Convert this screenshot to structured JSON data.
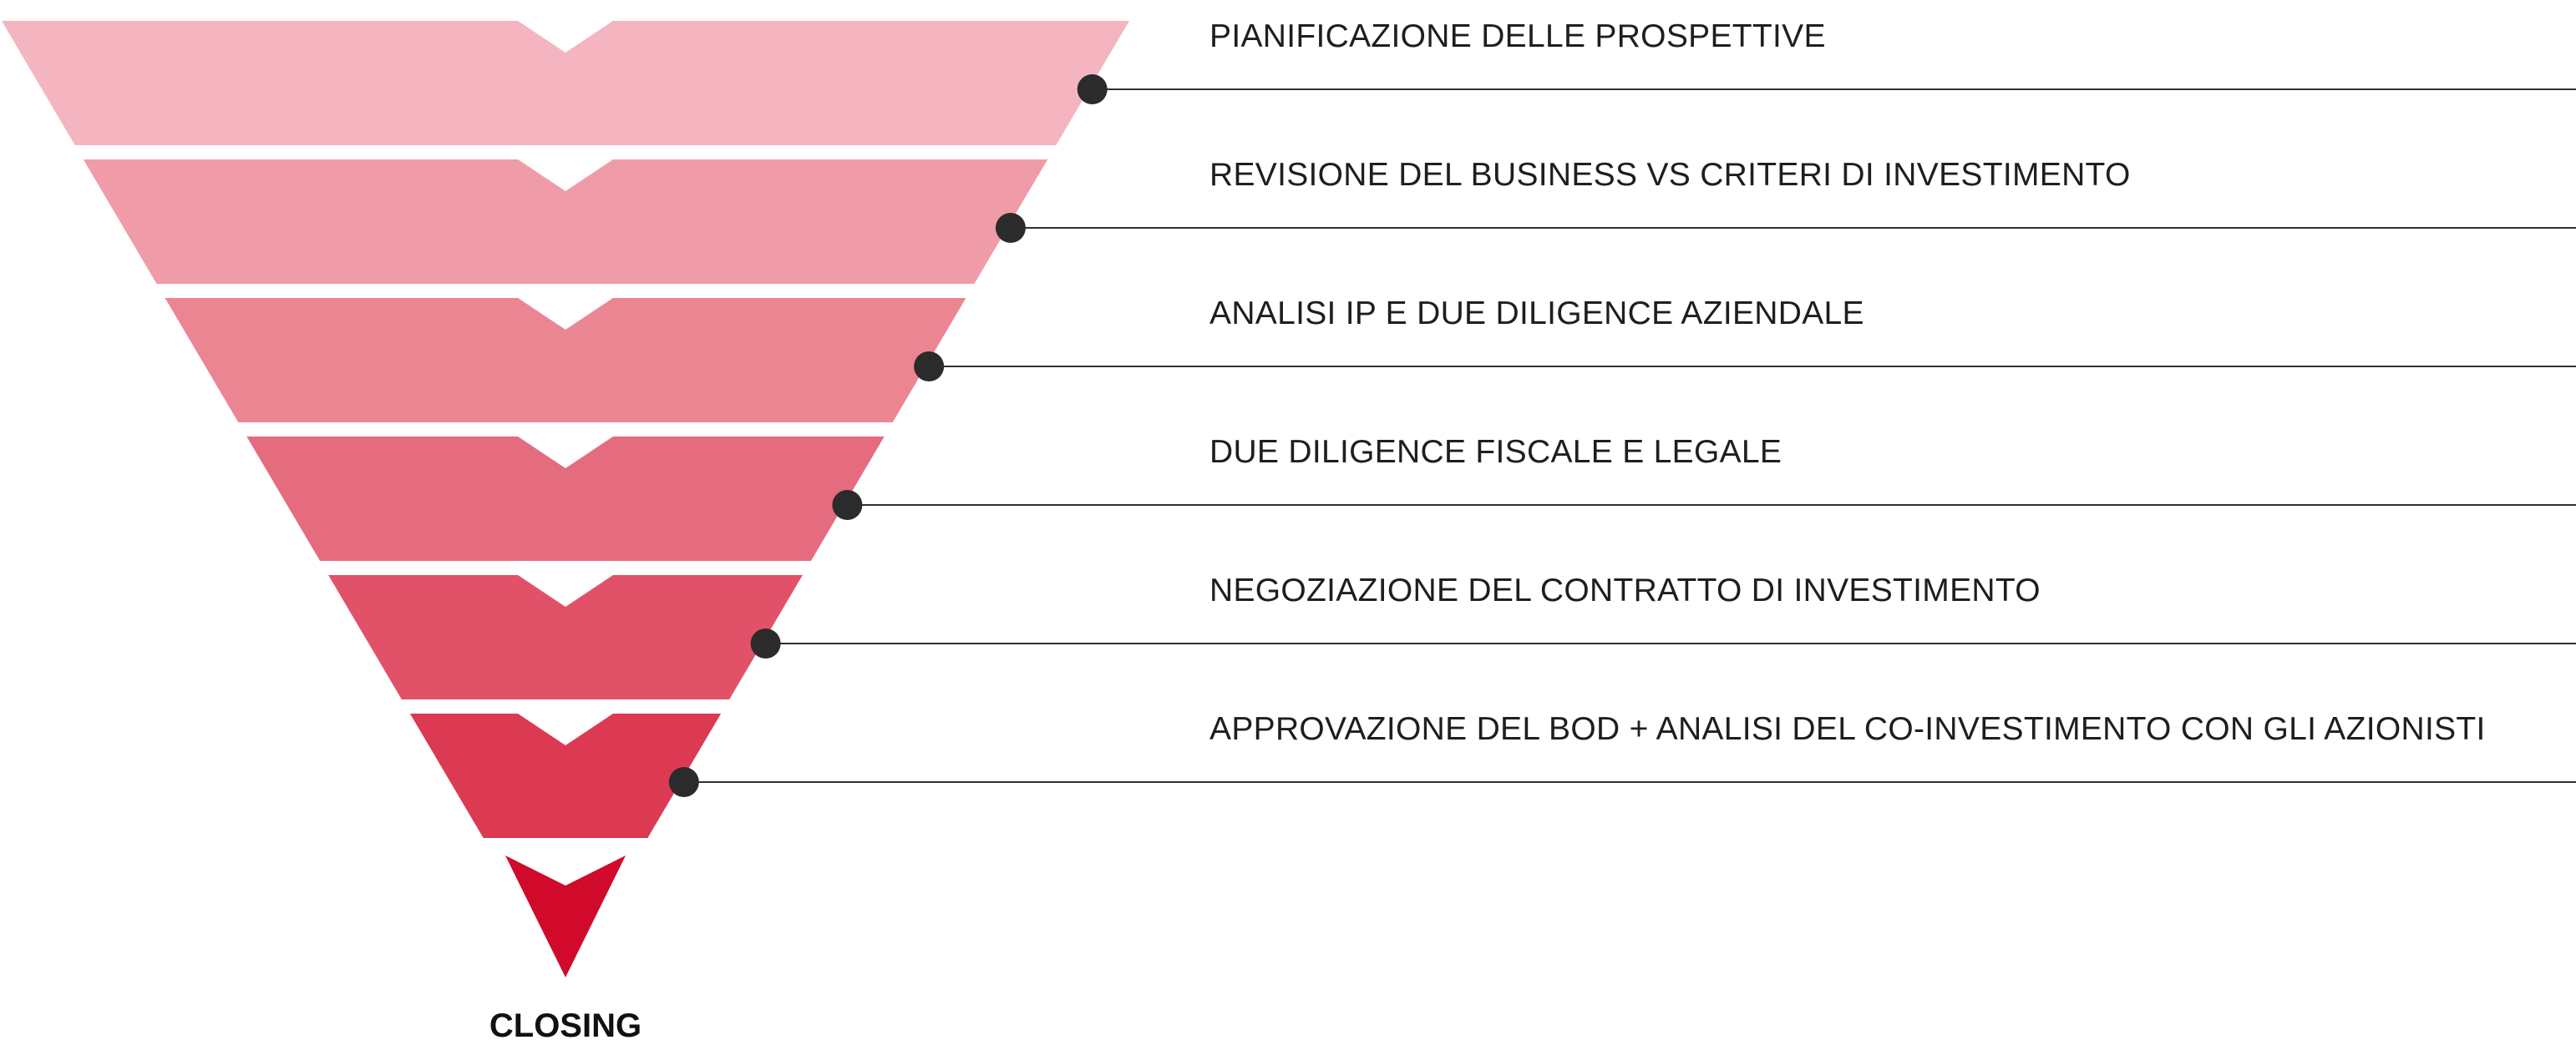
{
  "steps": [
    {
      "label": "PIANIFICAZIONE DELLE PROSPETTIVE",
      "color": "#F4B5C0"
    },
    {
      "label": "REVISIONE DEL BUSINESS VS CRITERI DI INVESTIMENTO",
      "color": "#F09CA8"
    },
    {
      "label": "ANALISI IP E DUE DILIGENCE AZIENDALE",
      "color": "#EB8592"
    },
    {
      "label": "DUE DILIGENCE FISCALE E LEGALE",
      "color": "#E56C7E"
    },
    {
      "label": "NEGOZIAZIONE DEL CONTRATTO DI INVESTIMENTO",
      "color": "#E15269"
    },
    {
      "label": "APPROVAZIONE DEL BOD + ANALISI DEL CO-INVESTIMENTO CON GLI AZIONISTI",
      "color": "#DC3952"
    }
  ],
  "closing": {
    "label": "CLOSING",
    "color": "#D10A2B"
  },
  "leader_color": "#2F2F2F"
}
